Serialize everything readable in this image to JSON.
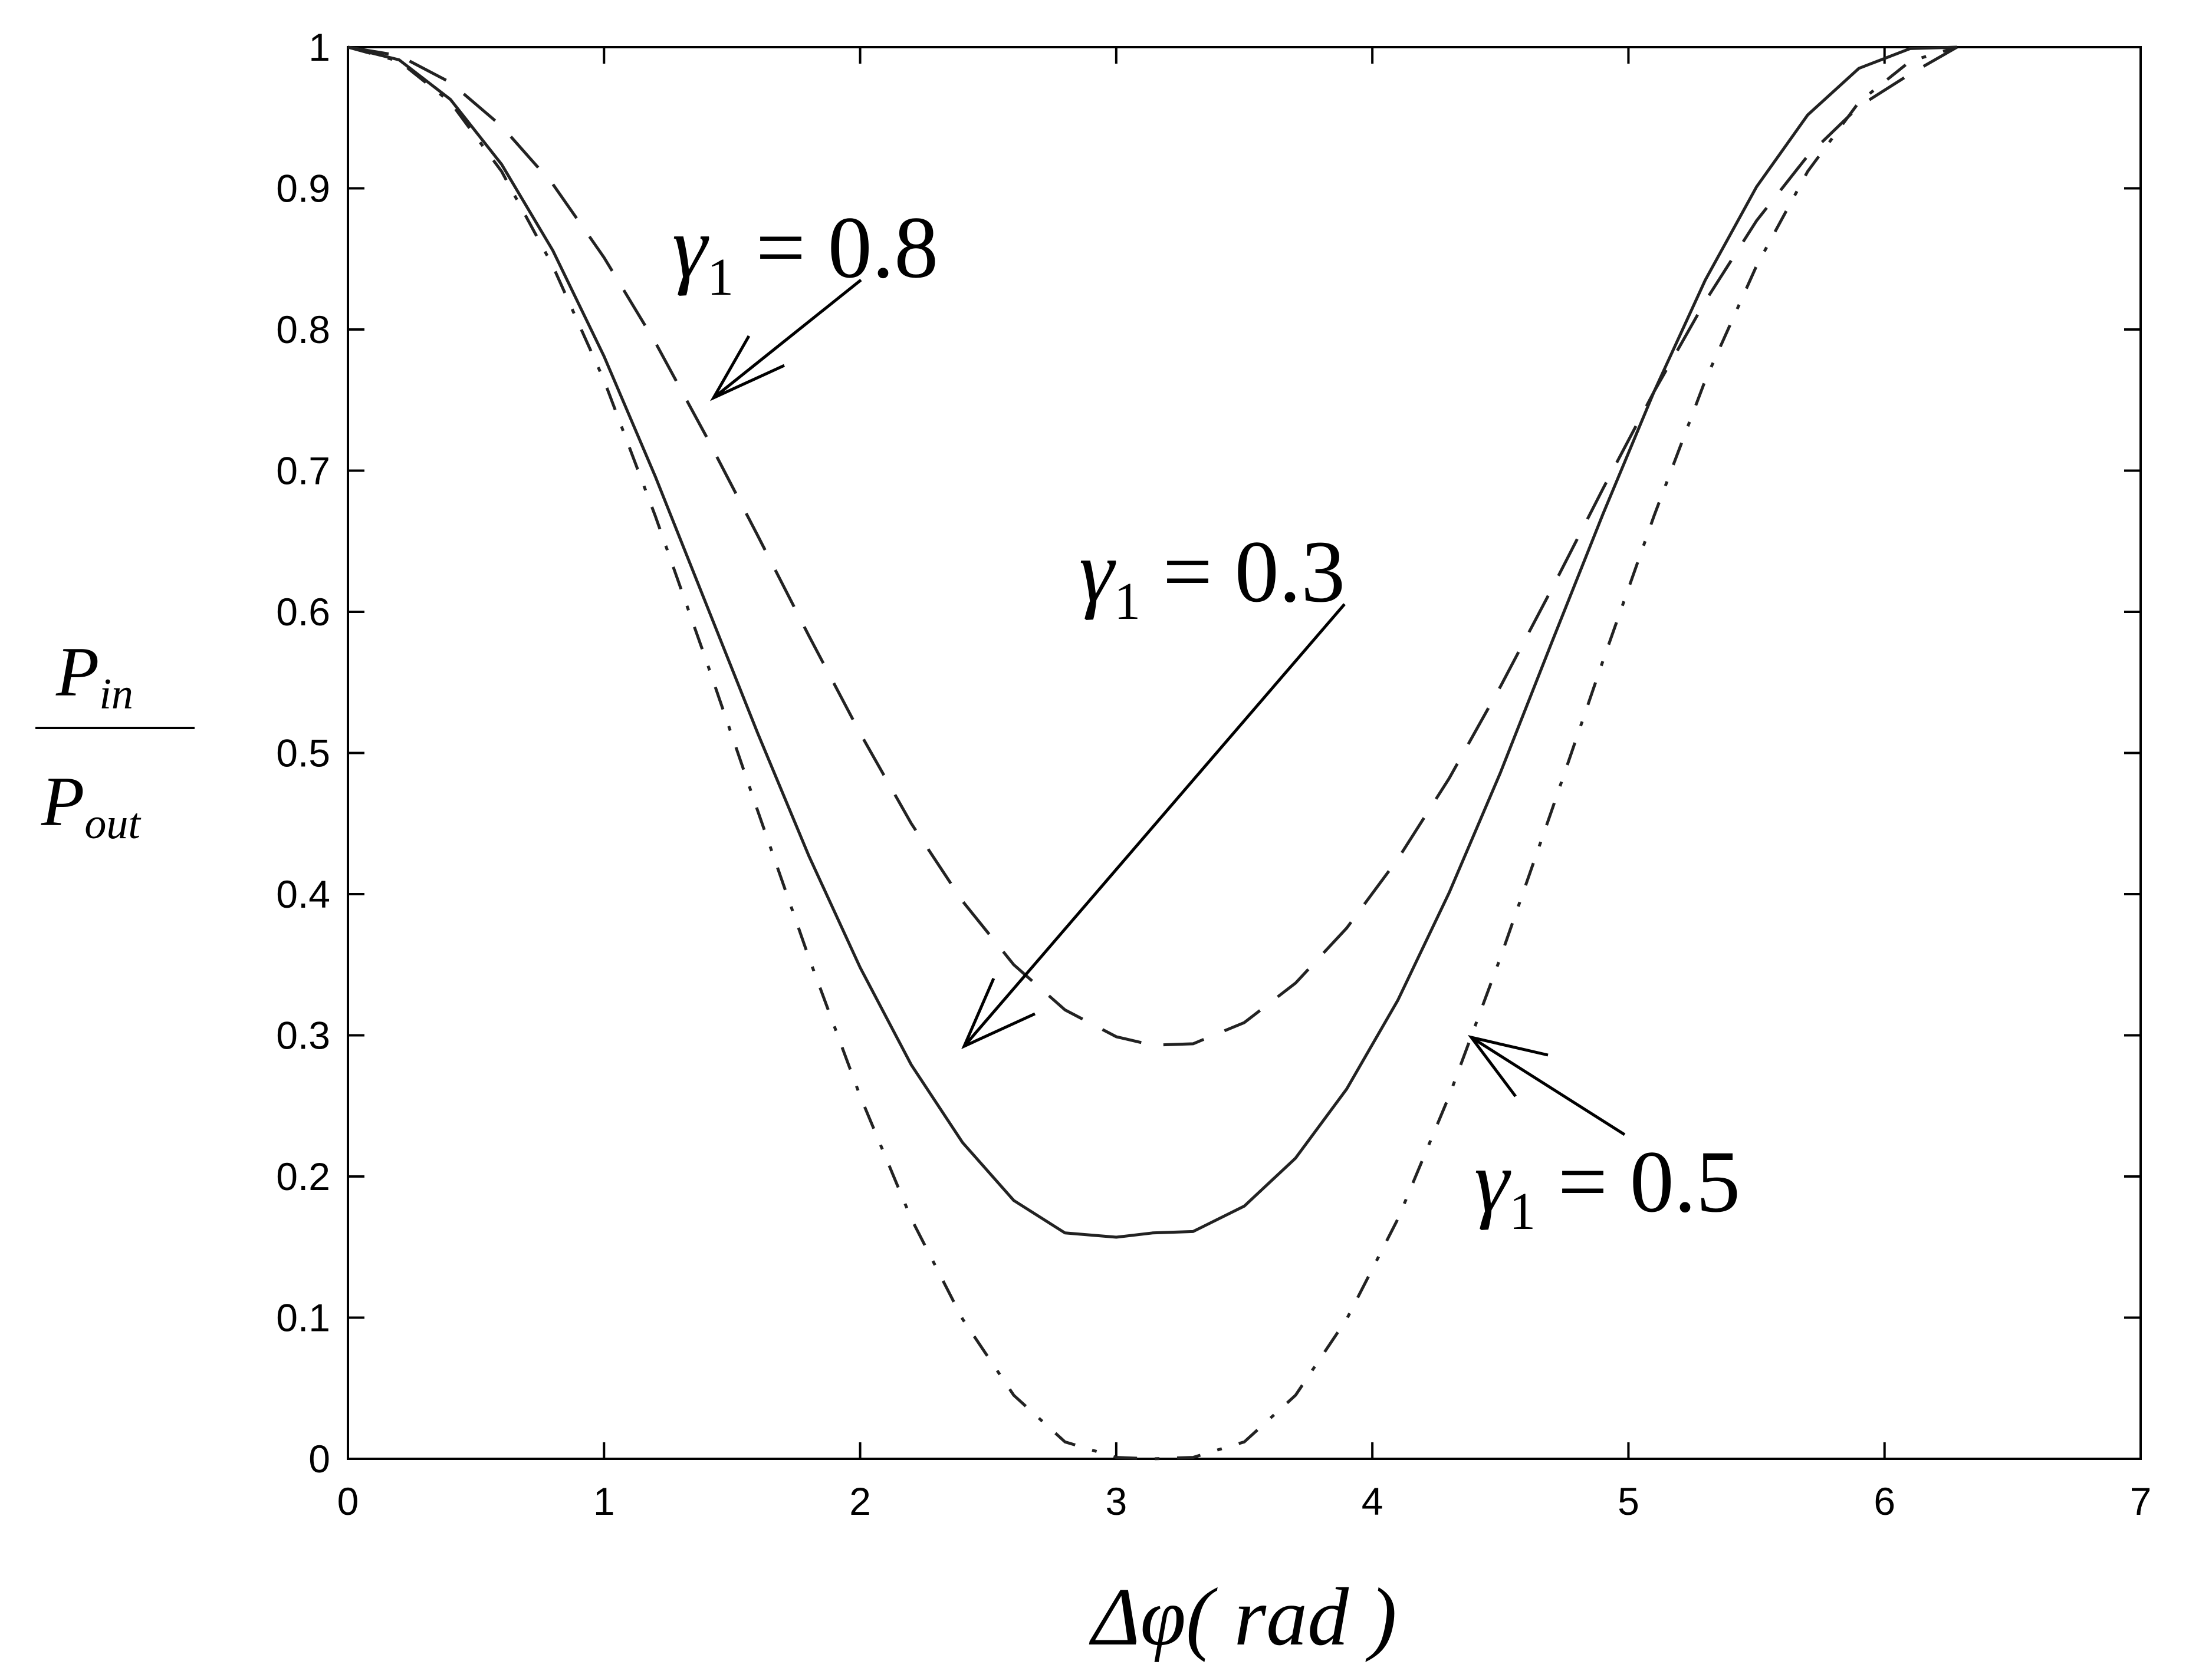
{
  "chart_data": {
    "type": "line",
    "title": "",
    "xlabel": "Δφ( rad )",
    "ylabel": {
      "numerator": "P",
      "numerator_sub": "in",
      "denominator": "P",
      "denominator_sub": "out"
    },
    "xlim": [
      0,
      7
    ],
    "ylim": [
      0,
      1
    ],
    "xticks": [
      0,
      1,
      2,
      3,
      4,
      5,
      6,
      7
    ],
    "yticks": [
      0,
      0.1,
      0.2,
      0.3,
      0.4,
      0.5,
      0.6,
      0.7,
      0.8,
      0.9,
      1
    ],
    "xtick_labels": [
      "0",
      "1",
      "2",
      "3",
      "4",
      "5",
      "6",
      "7"
    ],
    "ytick_labels": [
      "0",
      "0.1",
      "0.2",
      "0.3",
      "0.4",
      "0.5",
      "0.6",
      "0.7",
      "0.8",
      "0.9",
      "1"
    ],
    "grid": false,
    "x": [
      0,
      0.2,
      0.4,
      0.6,
      0.8,
      1.0,
      1.2,
      1.4,
      1.6,
      1.8,
      2.0,
      2.2,
      2.4,
      2.6,
      2.8,
      3.0,
      3.1416,
      3.3,
      3.5,
      3.7,
      3.9,
      4.1,
      4.3,
      4.5,
      4.7,
      4.9,
      5.1,
      5.3,
      5.5,
      5.7,
      5.9,
      6.1,
      6.2832
    ],
    "series": [
      {
        "label": "γ1 = 0.8",
        "style": "dashed",
        "values": [
          1.0,
          0.994,
          0.975,
          0.944,
          0.903,
          0.851,
          0.791,
          0.724,
          0.654,
          0.583,
          0.514,
          0.45,
          0.395,
          0.35,
          0.318,
          0.299,
          0.293,
          0.294,
          0.309,
          0.337,
          0.376,
          0.425,
          0.482,
          0.547,
          0.616,
          0.687,
          0.756,
          0.82,
          0.877,
          0.923,
          0.958,
          0.981,
          1.0
        ]
      },
      {
        "label": "γ1 = 0.3",
        "style": "solid",
        "values": [
          1.0,
          0.991,
          0.963,
          0.917,
          0.856,
          0.781,
          0.696,
          0.605,
          0.514,
          0.427,
          0.348,
          0.279,
          0.224,
          0.183,
          0.16,
          0.157,
          0.16,
          0.161,
          0.179,
          0.213,
          0.262,
          0.325,
          0.401,
          0.486,
          0.578,
          0.669,
          0.756,
          0.835,
          0.901,
          0.952,
          0.985,
          0.999,
          1.0
        ]
      },
      {
        "label": "γ1 = 0.5",
        "style": "dash-dot",
        "values": [
          1.0,
          0.99,
          0.961,
          0.912,
          0.845,
          0.764,
          0.668,
          0.565,
          0.459,
          0.355,
          0.257,
          0.17,
          0.099,
          0.045,
          0.012,
          0.001,
          0.0,
          0.001,
          0.012,
          0.045,
          0.099,
          0.17,
          0.257,
          0.355,
          0.459,
          0.565,
          0.668,
          0.764,
          0.845,
          0.912,
          0.961,
          0.99,
          1.0
        ]
      }
    ],
    "annotations": [
      {
        "name": "γ1 = 0.8",
        "symbol": "γ",
        "sub": "1",
        "text": " = 0.8",
        "arrow_to": [
          1.42,
          0.745
        ]
      },
      {
        "name": "γ1 = 0.3",
        "symbol": "γ",
        "sub": "1",
        "text": " = 0.3",
        "arrow_to": [
          2.37,
          0.29
        ]
      },
      {
        "name": "γ1 = 0.5",
        "symbol": "γ",
        "sub": "1",
        "text": " = 0.5",
        "arrow_to": [
          4.35,
          0.295
        ]
      }
    ]
  }
}
